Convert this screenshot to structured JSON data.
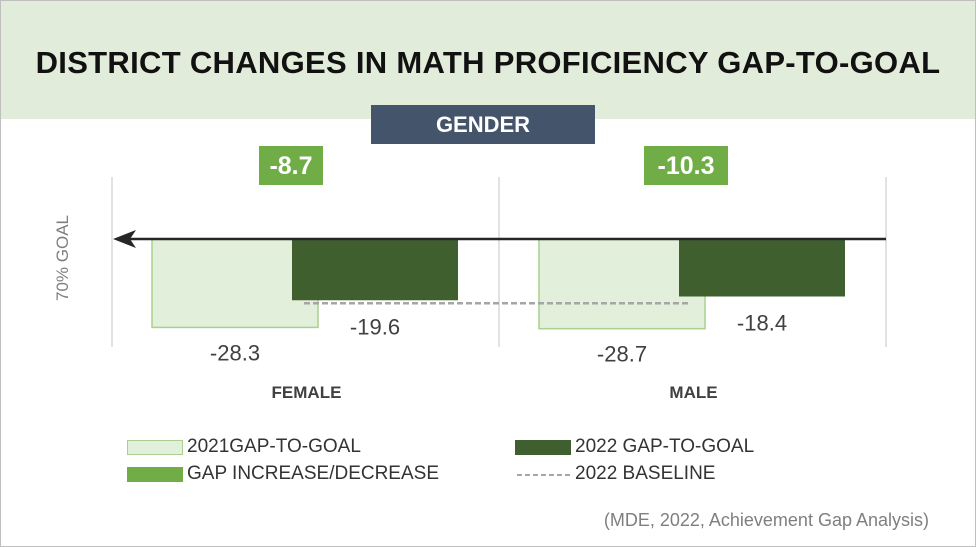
{
  "title": "DISTRICT CHANGES IN MATH PROFICIENCY GAP-TO-GOAL",
  "category_label": "GENDER",
  "source": "(MDE, 2022, Achievement Gap Analysis)",
  "colors": {
    "title_band": "#e2ecda",
    "category_label_bg": "#44546a",
    "series_2021_fill": "#e2efda",
    "series_2021_border": "#a9d08e",
    "series_2022": "#3f5f2e",
    "change_box": "#70ad47",
    "baseline": "#a6a6a6"
  },
  "chart_data": {
    "type": "bar",
    "title": "DISTRICT CHANGES IN MATH PROFICIENCY GAP-TO-GOAL",
    "subtitle": "GENDER",
    "ylabel": "70% GOAL",
    "xlabel": "",
    "ylim": [
      -40,
      0
    ],
    "categories": [
      "FEMALE",
      "MALE"
    ],
    "series": [
      {
        "name": "2021GAP-TO-GOAL",
        "values": [
          -28.3,
          -28.7
        ],
        "labels": [
          "-28.3",
          "-28.7"
        ]
      },
      {
        "name": "2022 GAP-TO-GOAL",
        "values": [
          -19.6,
          -18.4
        ],
        "labels": [
          "-19.6",
          "-18.4"
        ]
      }
    ],
    "changes": {
      "name": "GAP INCREASE/DECREASE",
      "values": [
        -8.7,
        -10.3
      ],
      "labels": [
        "-8.7",
        "-10.3"
      ]
    },
    "baseline": {
      "name": "2022 BASELINE",
      "value": -19.6
    },
    "legend": {
      "position": "bottom",
      "items": [
        "2021GAP-TO-GOAL",
        "2022 GAP-TO-GOAL",
        "GAP INCREASE/DECREASE",
        "2022 BASELINE"
      ]
    }
  }
}
